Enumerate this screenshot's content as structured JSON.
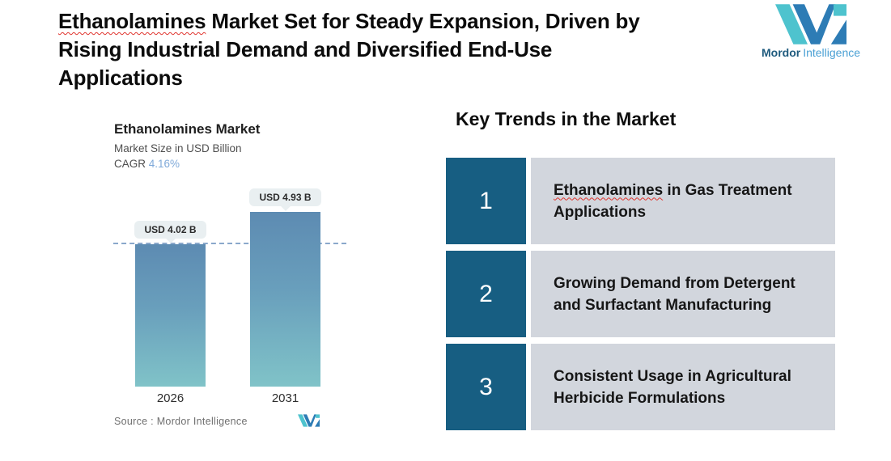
{
  "header": {
    "title_line1_word": "Ethanolamines",
    "title_line1_rest": " Market Set for Steady Expansion, Driven by",
    "title_line2": "Rising Industrial Demand and Diversified End-Use",
    "title_line3": "Applications"
  },
  "brand": {
    "name_bold": "Mordor",
    "name_light": "Intelligence",
    "colors": {
      "teal": "#4EC3CE",
      "blue": "#2D7CB5",
      "dark_text": "#1F5B7E",
      "light_text": "#4AA0D4"
    }
  },
  "chart_data": {
    "type": "bar",
    "title": "Ethanolamines Market",
    "subtitle": "Market Size in USD Billion",
    "cagr_label": "CAGR",
    "cagr_value": "4.16%",
    "categories": [
      "2026",
      "2031"
    ],
    "values": [
      4.02,
      4.93
    ],
    "value_labels": [
      "USD 4.02 B",
      "USD 4.93 B"
    ],
    "unit": "USD Billion",
    "baseline_value": 4.02,
    "source": "Source :  Mordor Intelligence",
    "bar_gradient_top": "#5D8BB2",
    "bar_gradient_bottom": "#80C3C8",
    "dashed_line_color": "#8AA8CB",
    "legend": "none",
    "grid": "off"
  },
  "key_trends": {
    "heading": "Key Trends in the Market",
    "number_box_color": "#175E82",
    "card_color": "#D2D6DD",
    "items": [
      {
        "number": "1",
        "line1_word": "Ethanolamines",
        "line1": " in Gas Treatment",
        "line2": "Applications"
      },
      {
        "number": "2",
        "line1": "Growing Demand from Detergent",
        "line2": "and Surfactant Manufacturing"
      },
      {
        "number": "3",
        "line1": "Consistent Usage in Agricultural",
        "line2": "Herbicide Formulations"
      }
    ]
  }
}
